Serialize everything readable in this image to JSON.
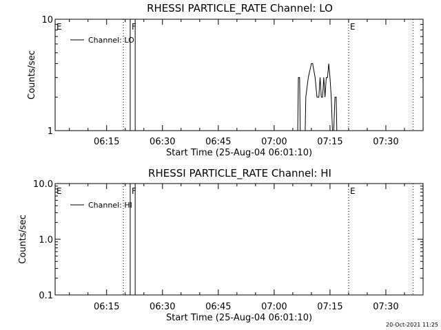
{
  "footer": {
    "timestamp": "20-Oct-2021 11:25"
  },
  "chart_data": [
    {
      "type": "line",
      "title": "RHESSI PARTICLE_RATE Channel: LO",
      "xlabel": "Start Time (25-Aug-04 06:01:10)",
      "ylabel": "Counts/sec",
      "yscale": "log",
      "ylim": [
        1,
        10
      ],
      "xlim": [
        "06:01:10",
        "07:40:00"
      ],
      "x_ticks": [
        "06:15",
        "06:30",
        "06:45",
        "07:00",
        "07:15",
        "07:30"
      ],
      "y_ticks": [
        "1",
        "10"
      ],
      "legend": {
        "position": "top-left",
        "entries": [
          "Channel: LO"
        ]
      },
      "markers": [
        {
          "label": "E",
          "time": "06:01:10",
          "style": "none"
        },
        {
          "label": "",
          "time": "06:19:30",
          "style": "dotted"
        },
        {
          "label": "F",
          "time": "06:21:20",
          "style": "solid"
        },
        {
          "label": "",
          "time": "06:22:40",
          "style": "solid"
        },
        {
          "label": "E",
          "time": "07:20:00",
          "style": "dotted"
        },
        {
          "label": "",
          "time": "07:37:20",
          "style": "dotted"
        }
      ],
      "series": [
        {
          "name": "Channel: LO",
          "points": [
            [
              "07:06:20",
              1.0
            ],
            [
              "07:06:30",
              3.0
            ],
            [
              "07:06:50",
              3.0
            ],
            [
              "07:07:00",
              1.0
            ],
            [
              "07:08:20",
              1.0
            ],
            [
              "07:08:30",
              2.0
            ],
            [
              "07:09:10",
              3.0
            ],
            [
              "07:10:00",
              4.0
            ],
            [
              "07:10:20",
              4.0
            ],
            [
              "07:11:00",
              3.0
            ],
            [
              "07:11:30",
              2.0
            ],
            [
              "07:12:00",
              2.0
            ],
            [
              "07:12:20",
              3.0
            ],
            [
              "07:12:40",
              2.0
            ],
            [
              "07:13:00",
              2.0
            ],
            [
              "07:13:20",
              3.0
            ],
            [
              "07:13:40",
              2.0
            ],
            [
              "07:14:00",
              3.0
            ],
            [
              "07:14:20",
              3.0
            ],
            [
              "07:14:40",
              4.0
            ],
            [
              "07:15:00",
              3.0
            ],
            [
              "07:15:20",
              2.0
            ],
            [
              "07:15:40",
              1.0
            ],
            [
              "07:16:00",
              1.0
            ],
            [
              "07:16:20",
              2.0
            ],
            [
              "07:16:40",
              2.0
            ],
            [
              "07:16:50",
              1.0
            ]
          ]
        }
      ]
    },
    {
      "type": "line",
      "title": "RHESSI PARTICLE_RATE Channel: HI",
      "xlabel": "Start Time (25-Aug-04 06:01:10)",
      "ylabel": "Counts/sec",
      "yscale": "log",
      "ylim": [
        0.1,
        10.0
      ],
      "xlim": [
        "06:01:10",
        "07:40:00"
      ],
      "x_ticks": [
        "06:15",
        "06:30",
        "06:45",
        "07:00",
        "07:15",
        "07:30"
      ],
      "y_ticks": [
        "0.1",
        "1.0",
        "10.0"
      ],
      "legend": {
        "position": "top-left",
        "entries": [
          "Channel: HI"
        ]
      },
      "markers": [
        {
          "label": "E",
          "time": "06:01:10",
          "style": "none"
        },
        {
          "label": "",
          "time": "06:19:30",
          "style": "dotted"
        },
        {
          "label": "F",
          "time": "06:21:20",
          "style": "solid"
        },
        {
          "label": "",
          "time": "06:22:40",
          "style": "solid"
        },
        {
          "label": "E",
          "time": "07:20:00",
          "style": "dotted"
        },
        {
          "label": "",
          "time": "07:37:20",
          "style": "dotted"
        }
      ],
      "series": [
        {
          "name": "Channel: HI",
          "points": []
        }
      ]
    }
  ]
}
